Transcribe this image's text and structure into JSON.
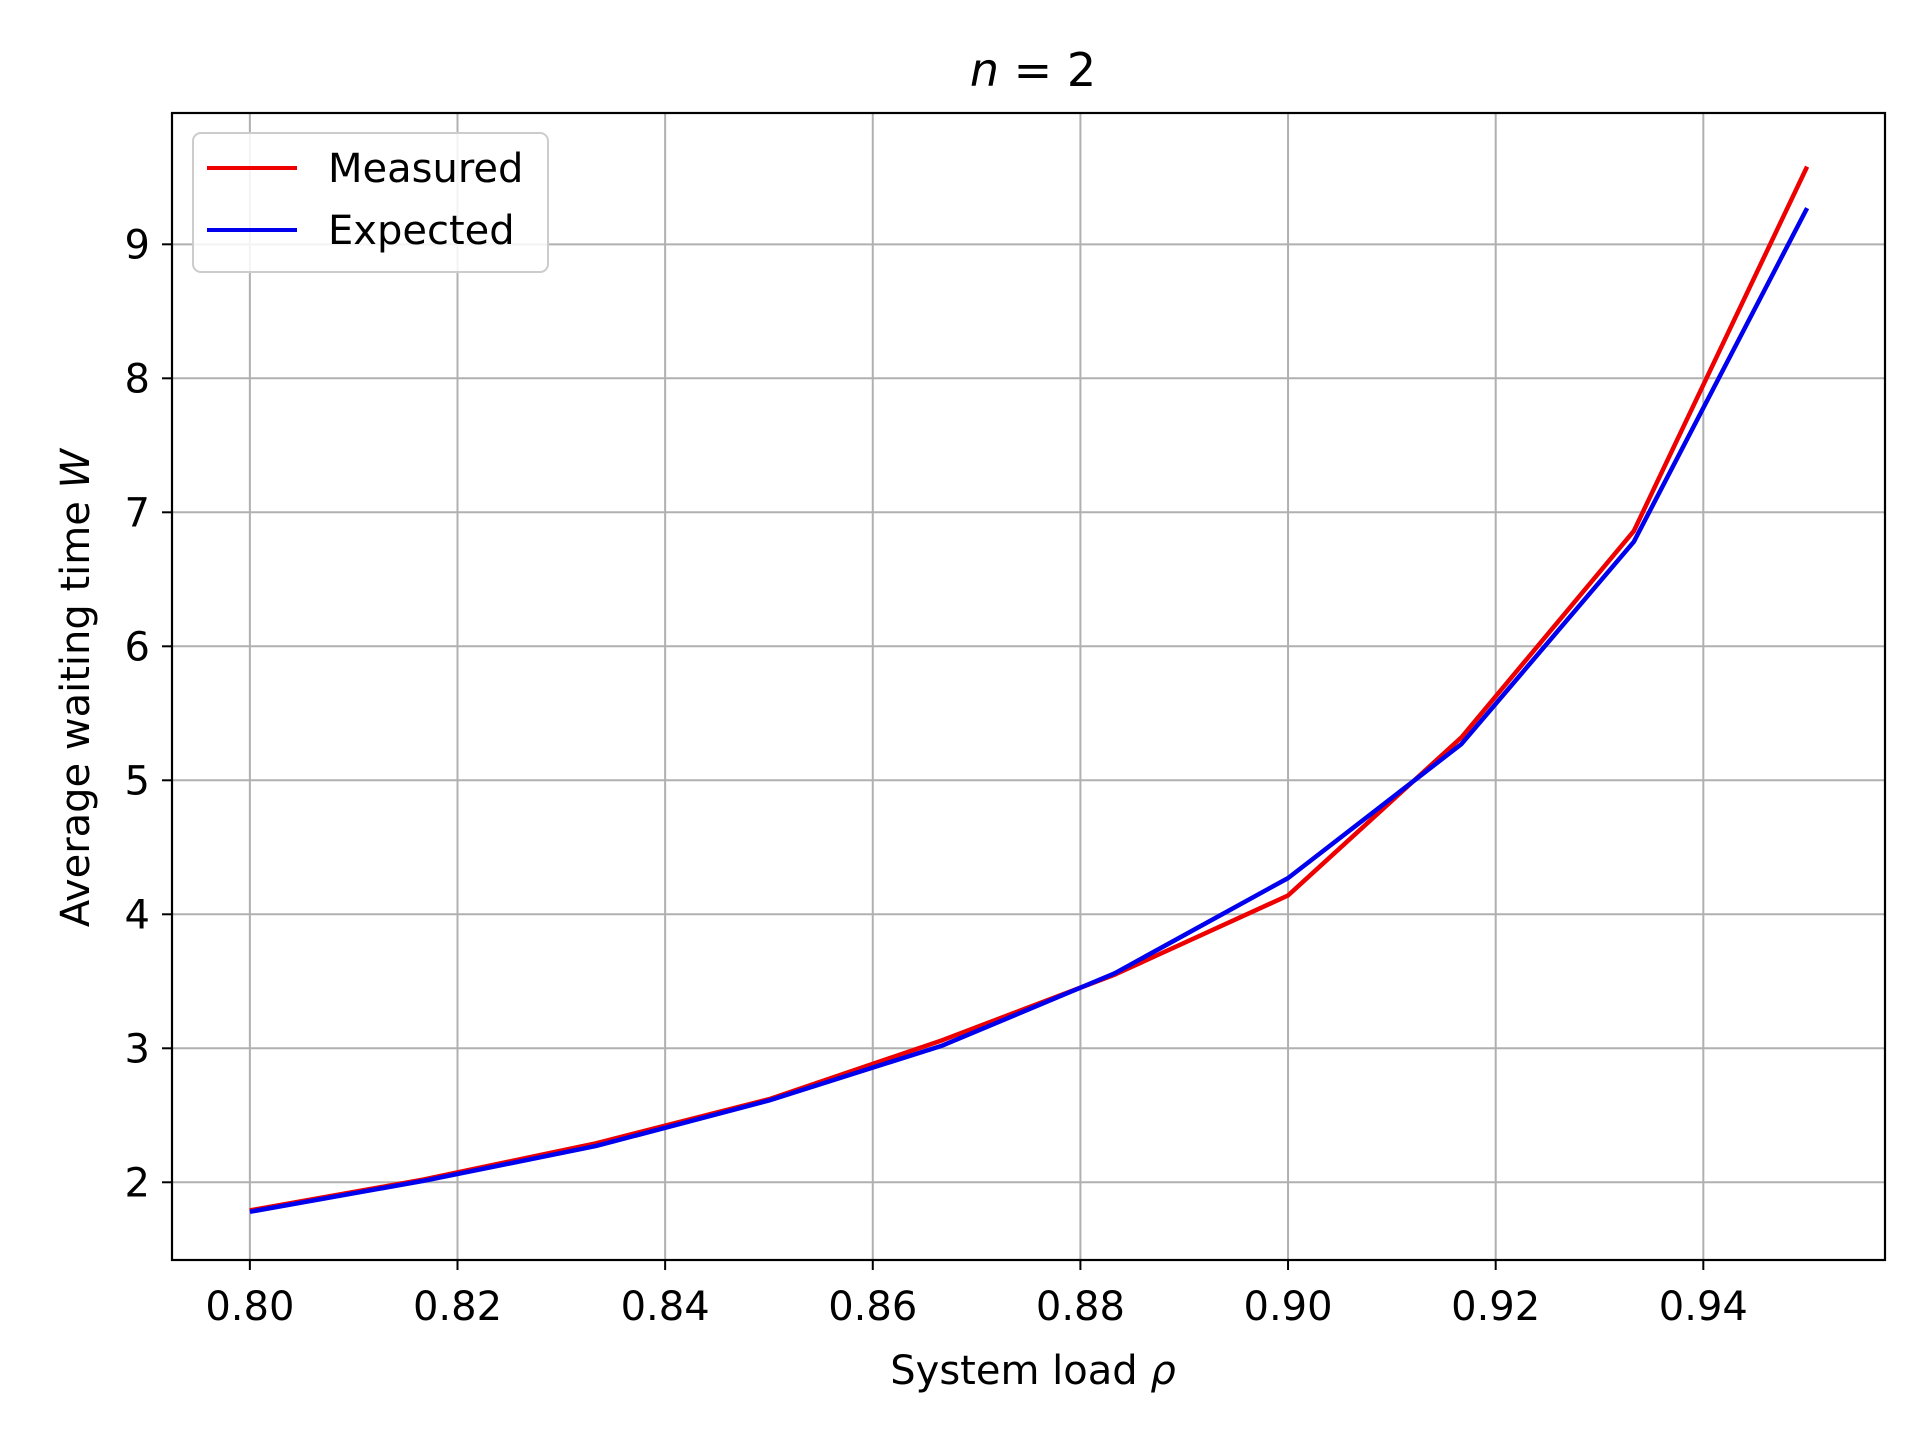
{
  "chart_data": {
    "type": "line",
    "title": {
      "pre": "n",
      "post": " = 2"
    },
    "xlabel": {
      "pre": "System load ",
      "sym": "ρ"
    },
    "ylabel": {
      "pre": "Average waiting time ",
      "sym": "W"
    },
    "xlim": [
      0.7925,
      0.9575
    ],
    "ylim": [
      1.42,
      9.98
    ],
    "xticks": [
      0.8,
      0.82,
      0.84,
      0.86,
      0.88,
      0.9,
      0.92,
      0.94
    ],
    "xtick_labels": [
      "0.80",
      "0.82",
      "0.84",
      "0.86",
      "0.88",
      "0.90",
      "0.92",
      "0.94"
    ],
    "yticks": [
      2,
      3,
      4,
      5,
      6,
      7,
      8,
      9
    ],
    "ytick_labels": [
      "2",
      "3",
      "4",
      "5",
      "6",
      "7",
      "8",
      "9"
    ],
    "grid": true,
    "legend_position": "upper-left",
    "x": [
      0.8,
      0.8167,
      0.8333,
      0.85,
      0.8667,
      0.8833,
      0.9,
      0.9167,
      0.9333,
      0.95
    ],
    "series": [
      {
        "name": "Measured",
        "color": "#ee0000",
        "values": [
          1.79,
          2.02,
          2.29,
          2.62,
          3.06,
          3.55,
          4.14,
          5.32,
          6.86,
          9.58
        ]
      },
      {
        "name": "Expected",
        "color": "#0000ee",
        "values": [
          1.78,
          2.01,
          2.27,
          2.61,
          3.02,
          3.56,
          4.27,
          5.27,
          6.78,
          9.27
        ]
      }
    ]
  }
}
